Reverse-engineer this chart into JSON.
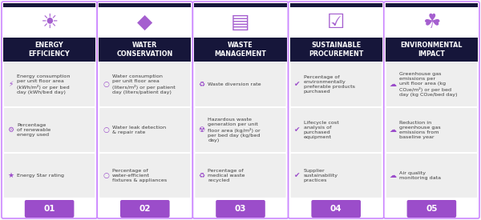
{
  "columns": [
    {
      "number": "01",
      "title": "ENERGY\nEFFICIENCY",
      "icon_char": "⛏",
      "items": [
        "Energy consumption\nper unit floor area\n(kWh/m²) or per bed\nday (kWh/bed day)",
        "Percentage\nof renewable\nenergy used",
        "Energy Star rating"
      ]
    },
    {
      "number": "02",
      "title": "WATER\nCONSERVATION",
      "icon_char": "☔",
      "items": [
        "Water consumption\nper unit floor area\n(liters/m²) or per patient\nday (liters/patient day)",
        "Water leak detection\n& repair rate",
        "Percentage of\nwater-efficient\nfixtures & appliances"
      ]
    },
    {
      "number": "03",
      "title": "WASTE\nMANAGEMENT",
      "icon_char": "♻",
      "items": [
        "Waste diversion rate",
        "Hazardous waste\ngeneration per unit\nfloor area (kg/m²) or\nper bed day (kg/bed\nday)",
        "Percentage of\nmedical waste\nrecycled"
      ]
    },
    {
      "number": "04",
      "title": "SUSTAINABLE\nPROCUREMENT",
      "icon_char": "✓",
      "items": [
        "Percentage of\nenvironmentally\npreferable products\npurchased",
        "Lifecycle cost\nanalysis of\npurchased\nequipment",
        "Supplier\nsustainability\npractices"
      ]
    },
    {
      "number": "05",
      "title": "ENVIRONMENTAL\nIMPACT",
      "icon_char": "☘",
      "items": [
        "Greenhouse gas\nemissions per\nunit floor area (kg\nCO₂e/m²) or per bed\nday (kg CO₂e/bed day)",
        "Reduction in\ngreenhouse gas\nemissions from\nbaseline year",
        "Air quality\nmonitoring data"
      ]
    }
  ],
  "header_bg": "#16163a",
  "header_text_color": "#ffffff",
  "item_bg": "#eeeeee",
  "item_text_color": "#3d3d3d",
  "number_bg": "#9b4dca",
  "number_text_color": "#ffffff",
  "icon_color": "#9b4dca",
  "border_color": "#cc88ff",
  "card_bg": "#ffffff",
  "top_bar_color": "#16163a"
}
